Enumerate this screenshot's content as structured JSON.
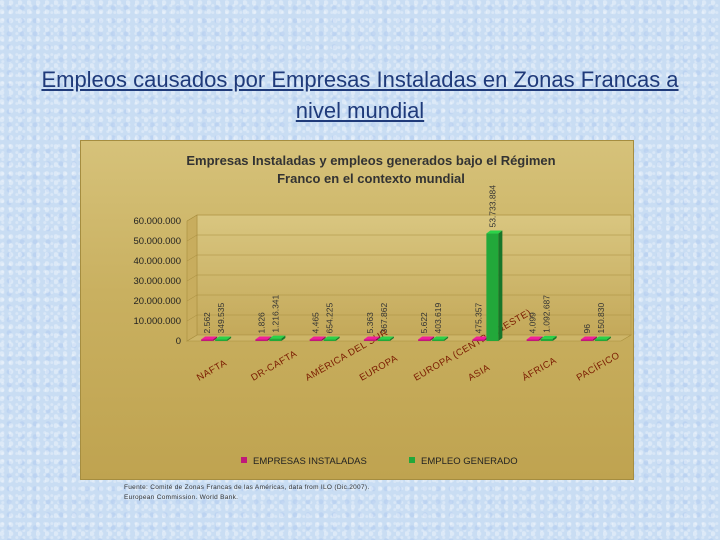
{
  "slide": {
    "title": "Empleos causados por Empresas Instaladas en Zonas Francas a nivel mundial",
    "source_note_lines": [
      "Fuente: Comité de Zonas Francas de las Américas, data from ILO (Dic.2007).",
      "European Commission. World Bank."
    ]
  },
  "colors": {
    "empresas": "#c0187a",
    "empleo": "#22a83a",
    "title": "#1f3a7a"
  },
  "chart_data": {
    "type": "bar",
    "three_d": true,
    "title_lines": [
      "Empresas Instaladas y empleos generados bajo el Régimen",
      "Franco en el contexto mundial"
    ],
    "categories": [
      "NAFTA",
      "DR-CAFTA",
      "AMÉRICA DEL SUR",
      "EUROPA",
      "EUROPA (CENTRAL&ESTE)",
      "ASIA",
      "ÁFRICA",
      "PACÍFICO"
    ],
    "series": [
      {
        "name": "EMPRESAS INSTALADAS",
        "values": [
          2562,
          1826,
          4465,
          5363,
          5622,
          475357,
          4099,
          96
        ],
        "labels": [
          "2.562",
          "1.826",
          "4.465",
          "5.363",
          "5.622",
          "475.357",
          "4.099",
          "96"
        ]
      },
      {
        "name": "EMPLEO GENERADO",
        "values": [
          349535,
          1216341,
          654225,
          367862,
          403619,
          53733884,
          1092687,
          150830
        ],
        "labels": [
          "349.535",
          "1.216.341",
          "654.225",
          "367.862",
          "403.619",
          "53.733.884",
          "1.092.687",
          "150.830"
        ]
      }
    ],
    "y_ticks": [
      "0",
      "10.000.000",
      "20.000.000",
      "30.000.000",
      "40.000.000",
      "50.000.000",
      "60.000.000"
    ],
    "ylim": [
      0,
      60000000
    ],
    "legend_position": "bottom"
  }
}
